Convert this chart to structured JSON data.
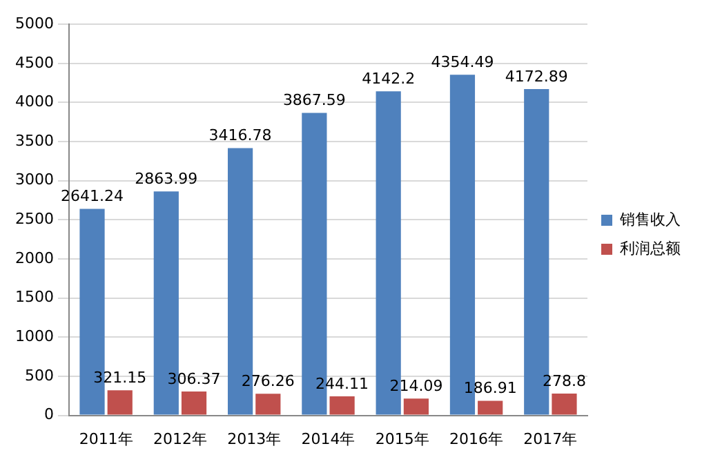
{
  "chart_data": {
    "type": "bar",
    "categories": [
      "2011年",
      "2012年",
      "2013年",
      "2014年",
      "2015年",
      "2016年",
      "2017年"
    ],
    "series": [
      {
        "name": "销售收入",
        "color": "#4f81bd",
        "values": [
          2641.24,
          2863.99,
          3416.78,
          3867.59,
          4142.2,
          4354.49,
          4172.89
        ]
      },
      {
        "name": "利润总额",
        "color": "#c0504d",
        "values": [
          321.15,
          306.37,
          276.26,
          244.11,
          214.09,
          186.91,
          278.8
        ]
      }
    ],
    "ylim": [
      0,
      5000
    ],
    "yticks": [
      0,
      500,
      1000,
      1500,
      2000,
      2500,
      3000,
      3500,
      4000,
      4500,
      5000
    ],
    "grid": "y",
    "legend": "right",
    "data_labels": true
  }
}
